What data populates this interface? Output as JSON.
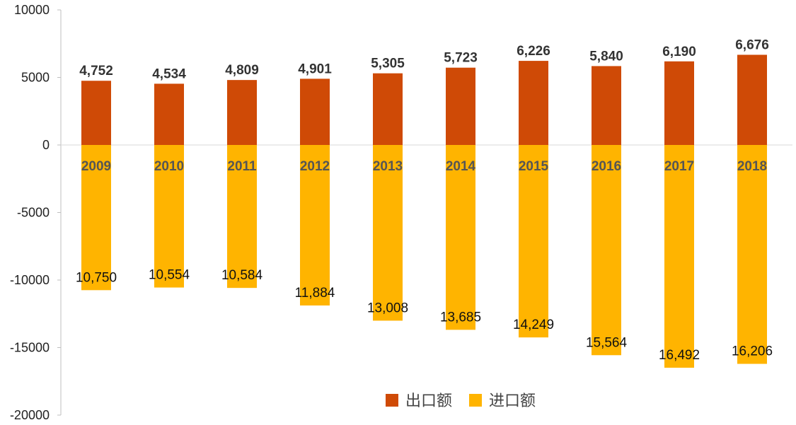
{
  "chart_data": {
    "type": "bar",
    "categories": [
      "2009",
      "2010",
      "2011",
      "2012",
      "2013",
      "2014",
      "2015",
      "2016",
      "2017",
      "2018"
    ],
    "series": [
      {
        "name": "出口额",
        "color": "#cf4a06",
        "values": [
          4752,
          4534,
          4809,
          4901,
          5305,
          5723,
          6226,
          5840,
          6190,
          6676
        ],
        "labels": [
          "4,752",
          "4,534",
          "4,809",
          "4,901",
          "5,305",
          "5,723",
          "6,226",
          "5,840",
          "6,190",
          "6,676"
        ]
      },
      {
        "name": "进口额",
        "color": "#ffb400",
        "values": [
          -10750,
          -10554,
          -10584,
          -11884,
          -13008,
          -13685,
          -14249,
          -15564,
          -16492,
          -16206
        ],
        "labels": [
          "10,750",
          "10,554",
          "10,584",
          "11,884",
          "13,008",
          "13,685",
          "14,249",
          "15,564",
          "16,492",
          "16,206"
        ]
      }
    ],
    "ylim": [
      -20000,
      10000
    ],
    "yticks": [
      10000,
      5000,
      0,
      -5000,
      -10000,
      -15000,
      -20000
    ],
    "ytick_labels": [
      "10000",
      "5000",
      "0",
      "-5000",
      "-10000",
      "-15000",
      "-20000"
    ],
    "stacked": "diverging",
    "grid": false,
    "legend": "bottom-center"
  }
}
